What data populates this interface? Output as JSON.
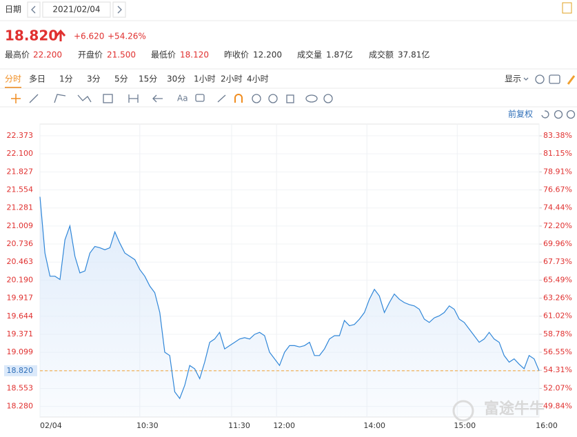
{
  "top": {
    "date_label": "日期",
    "date": "2021/02/04"
  },
  "quote": {
    "price": "18.820",
    "change": "+6.620",
    "change_pct": "+54.26%",
    "stats": [
      {
        "label": "最高价",
        "value": "22.200"
      },
      {
        "label": "开盘价",
        "value": "21.500"
      },
      {
        "label": "最低价",
        "value": "18.120"
      },
      {
        "label": "昨收价",
        "value": "12.200"
      },
      {
        "label": "成交量",
        "value": "1.87亿"
      },
      {
        "label": "成交额",
        "value": "37.81亿"
      }
    ]
  },
  "tabs": [
    "分时",
    "多日",
    "1分",
    "3分",
    "5分",
    "15分",
    "30分",
    "1小时",
    "2小时",
    "4小时"
  ],
  "display": "显示",
  "toolbar_text": "Aa",
  "adjust": "前复权",
  "watermark": "富途牛牛",
  "chart_data": {
    "type": "line",
    "color": "#2f86d8",
    "area_color": "#dbe9fa",
    "tick_color": "#e0302f",
    "price_line_color": "#f0a030",
    "grid": true,
    "xlim": [
      0,
      100
    ],
    "xticks": [
      {
        "value": 0,
        "label": "02/04"
      },
      {
        "value": 20,
        "label": "10:30"
      },
      {
        "value": 38.4,
        "label": "11:30"
      },
      {
        "value": 47.4,
        "label": "12:00"
      },
      {
        "value": 65.5,
        "label": "14:00"
      },
      {
        "value": 83.6,
        "label": "15:00"
      },
      {
        "value": 100,
        "label": "16:00"
      }
    ],
    "ylim": [
      18.12,
      22.55
    ],
    "yticks": [
      22.373,
      {
        "value": 22.1,
        "label": "22.100"
      },
      21.827,
      21.554,
      21.281,
      21.009,
      20.736,
      20.463,
      {
        "value": 20.19,
        "label": "20.190"
      },
      19.917,
      19.644,
      19.371,
      19.099,
      {
        "value": 18.82,
        "label": "18.820"
      },
      18.553,
      {
        "value": 18.28,
        "label": "18.280"
      }
    ],
    "y2lim": [
      48.52,
      84.84
    ],
    "y2ticks": [
      {
        "value": 83.38,
        "label": "83.38%"
      },
      {
        "value": 81.15,
        "label": "81.15%"
      },
      {
        "value": 78.91,
        "label": "78.91%"
      },
      {
        "value": 76.67,
        "label": "76.67%"
      },
      {
        "value": 74.44,
        "label": "74.44%"
      },
      {
        "value": 72.2,
        "label": "72.20%"
      },
      {
        "value": 69.96,
        "label": "69.96%"
      },
      {
        "value": 67.73,
        "label": "67.73%"
      },
      {
        "value": 65.49,
        "label": "65.49%"
      },
      {
        "value": 63.26,
        "label": "63.26%"
      },
      {
        "value": 61.02,
        "label": "61.02%"
      },
      {
        "value": 58.78,
        "label": "58.78%"
      },
      {
        "value": 56.55,
        "label": "56.55%"
      },
      {
        "value": 54.31,
        "label": "54.31%"
      },
      {
        "value": 52.07,
        "label": "52.07%"
      },
      {
        "value": 49.84,
        "label": "49.84%"
      }
    ],
    "values": [
      21.45,
      20.6,
      20.25,
      20.25,
      20.2,
      20.8,
      21.01,
      20.55,
      20.3,
      20.33,
      20.6,
      20.7,
      20.68,
      20.65,
      20.68,
      20.92,
      20.75,
      20.6,
      20.55,
      20.5,
      20.35,
      20.25,
      20.1,
      20.0,
      19.7,
      19.1,
      19.05,
      18.5,
      18.4,
      18.6,
      18.9,
      18.85,
      18.7,
      18.95,
      19.25,
      19.3,
      19.4,
      19.15,
      19.2,
      19.25,
      19.3,
      19.32,
      19.3,
      19.37,
      19.4,
      19.35,
      19.1,
      19.0,
      18.9,
      19.1,
      19.2,
      19.2,
      19.18,
      19.2,
      19.25,
      19.05,
      19.05,
      19.15,
      19.3,
      19.35,
      19.35,
      19.58,
      19.5,
      19.52,
      19.6,
      19.7,
      19.9,
      20.05,
      19.95,
      19.7,
      19.85,
      19.98,
      19.9,
      19.85,
      19.82,
      19.8,
      19.75,
      19.6,
      19.55,
      19.62,
      19.65,
      19.7,
      19.8,
      19.75,
      19.6,
      19.55,
      19.45,
      19.35,
      19.25,
      19.3,
      19.4,
      19.3,
      19.25,
      19.05,
      18.95,
      19.0,
      18.92,
      18.85,
      19.05,
      19.0,
      18.82
    ]
  }
}
